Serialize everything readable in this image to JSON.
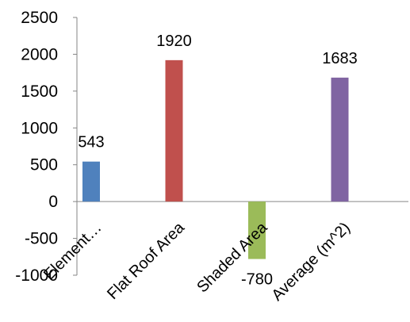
{
  "chart_data": {
    "type": "bar",
    "title": "",
    "xlabel": "",
    "ylabel": "",
    "categories": [
      "Element…",
      "Flat Roof Area",
      "Shaded Area",
      "Average (m^2)"
    ],
    "values": [
      543,
      1920,
      -780,
      1683
    ],
    "data_labels": [
      "543",
      "1920",
      "-780",
      "1683"
    ],
    "colors": [
      "#4F81BD",
      "#C0504D",
      "#9BBB59",
      "#8064A2"
    ],
    "ylim": [
      -1000,
      2500
    ],
    "yticks": [
      -1000,
      -500,
      0,
      500,
      1000,
      1500,
      2000,
      2500
    ],
    "ytick_labels": [
      "-1000",
      "-500",
      "0",
      "500",
      "1000",
      "1500",
      "2000",
      "2500"
    ],
    "grid": false,
    "legend": "none"
  }
}
